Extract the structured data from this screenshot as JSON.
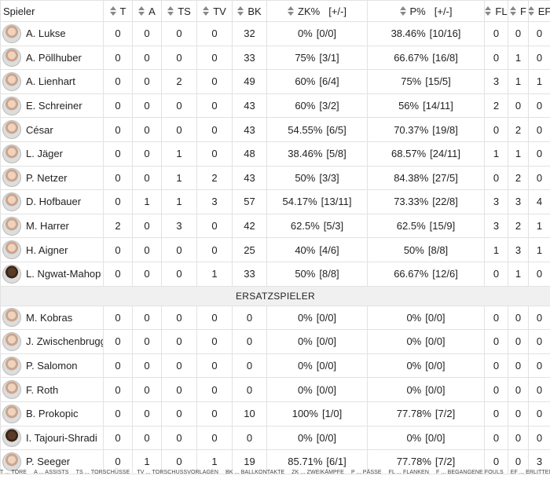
{
  "columns": {
    "spieler": "Spieler",
    "t": "T",
    "a": "A",
    "ts": "TS",
    "tv": "TV",
    "bk": "BK",
    "zk": "ZK%",
    "zk_pm": "[+/-]",
    "p": "P%",
    "p_pm": "[+/-]",
    "fl": "FL",
    "f": "F",
    "ef": "EF"
  },
  "starters": [
    {
      "name": "A. Lukse",
      "t": "0",
      "a": "0",
      "ts": "0",
      "tv": "0",
      "bk": "32",
      "zk": "0%",
      "zk_pm": "[0/0]",
      "p": "38.46%",
      "p_pm": "[10/16]",
      "fl": "0",
      "f": "0",
      "ef": "0"
    },
    {
      "name": "A. Pöllhuber",
      "t": "0",
      "a": "0",
      "ts": "0",
      "tv": "0",
      "bk": "33",
      "zk": "75%",
      "zk_pm": "[3/1]",
      "p": "66.67%",
      "p_pm": "[16/8]",
      "fl": "0",
      "f": "1",
      "ef": "0"
    },
    {
      "name": "A. Lienhart",
      "t": "0",
      "a": "0",
      "ts": "2",
      "tv": "0",
      "bk": "49",
      "zk": "60%",
      "zk_pm": "[6/4]",
      "p": "75%",
      "p_pm": "[15/5]",
      "fl": "3",
      "f": "1",
      "ef": "1"
    },
    {
      "name": "E. Schreiner",
      "t": "0",
      "a": "0",
      "ts": "0",
      "tv": "0",
      "bk": "43",
      "zk": "60%",
      "zk_pm": "[3/2]",
      "p": "56%",
      "p_pm": "[14/11]",
      "fl": "2",
      "f": "0",
      "ef": "0"
    },
    {
      "name": "César",
      "t": "0",
      "a": "0",
      "ts": "0",
      "tv": "0",
      "bk": "43",
      "zk": "54.55%",
      "zk_pm": "[6/5]",
      "p": "70.37%",
      "p_pm": "[19/8]",
      "fl": "0",
      "f": "2",
      "ef": "0"
    },
    {
      "name": "L. Jäger",
      "t": "0",
      "a": "0",
      "ts": "1",
      "tv": "0",
      "bk": "48",
      "zk": "38.46%",
      "zk_pm": "[5/8]",
      "p": "68.57%",
      "p_pm": "[24/11]",
      "fl": "1",
      "f": "1",
      "ef": "0"
    },
    {
      "name": "P. Netzer",
      "t": "0",
      "a": "0",
      "ts": "1",
      "tv": "2",
      "bk": "43",
      "zk": "50%",
      "zk_pm": "[3/3]",
      "p": "84.38%",
      "p_pm": "[27/5]",
      "fl": "0",
      "f": "2",
      "ef": "0"
    },
    {
      "name": "D. Hofbauer",
      "t": "0",
      "a": "1",
      "ts": "1",
      "tv": "3",
      "bk": "57",
      "zk": "54.17%",
      "zk_pm": "[13/11]",
      "p": "73.33%",
      "p_pm": "[22/8]",
      "fl": "3",
      "f": "3",
      "ef": "4"
    },
    {
      "name": "M. Harrer",
      "t": "2",
      "a": "0",
      "ts": "3",
      "tv": "0",
      "bk": "42",
      "zk": "62.5%",
      "zk_pm": "[5/3]",
      "p": "62.5%",
      "p_pm": "[15/9]",
      "fl": "3",
      "f": "2",
      "ef": "1"
    },
    {
      "name": "H. Aigner",
      "t": "0",
      "a": "0",
      "ts": "0",
      "tv": "0",
      "bk": "25",
      "zk": "40%",
      "zk_pm": "[4/6]",
      "p": "50%",
      "p_pm": "[8/8]",
      "fl": "1",
      "f": "3",
      "ef": "1"
    },
    {
      "name": "L. Ngwat-Mahop",
      "t": "0",
      "a": "0",
      "ts": "0",
      "tv": "1",
      "bk": "33",
      "zk": "50%",
      "zk_pm": "[8/8]",
      "p": "66.67%",
      "p_pm": "[12/6]",
      "fl": "0",
      "f": "1",
      "ef": "0",
      "dark": true
    }
  ],
  "section_label": "ERSATZSPIELER",
  "subs": [
    {
      "name": "M. Kobras",
      "t": "0",
      "a": "0",
      "ts": "0",
      "tv": "0",
      "bk": "0",
      "zk": "0%",
      "zk_pm": "[0/0]",
      "p": "0%",
      "p_pm": "[0/0]",
      "fl": "0",
      "f": "0",
      "ef": "0"
    },
    {
      "name": "J. Zwischenbrugger",
      "t": "0",
      "a": "0",
      "ts": "0",
      "tv": "0",
      "bk": "0",
      "zk": "0%",
      "zk_pm": "[0/0]",
      "p": "0%",
      "p_pm": "[0/0]",
      "fl": "0",
      "f": "0",
      "ef": "0"
    },
    {
      "name": "P. Salomon",
      "t": "0",
      "a": "0",
      "ts": "0",
      "tv": "0",
      "bk": "0",
      "zk": "0%",
      "zk_pm": "[0/0]",
      "p": "0%",
      "p_pm": "[0/0]",
      "fl": "0",
      "f": "0",
      "ef": "0"
    },
    {
      "name": "F. Roth",
      "t": "0",
      "a": "0",
      "ts": "0",
      "tv": "0",
      "bk": "0",
      "zk": "0%",
      "zk_pm": "[0/0]",
      "p": "0%",
      "p_pm": "[0/0]",
      "fl": "0",
      "f": "0",
      "ef": "0"
    },
    {
      "name": "B. Prokopic",
      "t": "0",
      "a": "0",
      "ts": "0",
      "tv": "0",
      "bk": "10",
      "zk": "100%",
      "zk_pm": "[1/0]",
      "p": "77.78%",
      "p_pm": "[7/2]",
      "fl": "0",
      "f": "0",
      "ef": "0"
    },
    {
      "name": "I. Tajouri-Shradi",
      "t": "0",
      "a": "0",
      "ts": "0",
      "tv": "0",
      "bk": "0",
      "zk": "0%",
      "zk_pm": "[0/0]",
      "p": "0%",
      "p_pm": "[0/0]",
      "fl": "0",
      "f": "0",
      "ef": "0",
      "dark": true
    },
    {
      "name": "P. Seeger",
      "t": "0",
      "a": "1",
      "ts": "0",
      "tv": "1",
      "bk": "19",
      "zk": "85.71%",
      "zk_pm": "[6/1]",
      "p": "77.78%",
      "p_pm": "[7/2]",
      "fl": "0",
      "f": "0",
      "ef": "3"
    }
  ],
  "legend": [
    "T ... TORE",
    "A ... ASSISTS",
    "TS ... TORSCHÜSSE",
    "TV ... TORSCHUSSVORLAGEN",
    "BK ... BALLKONTAKTE",
    "ZK ... ZWEIKÄMPFE",
    "P ... PÄSSE",
    "FL ... FLANKEN",
    "F ... BEGANGENE FOULS",
    "EF ... ERLITTENE FOULS"
  ]
}
